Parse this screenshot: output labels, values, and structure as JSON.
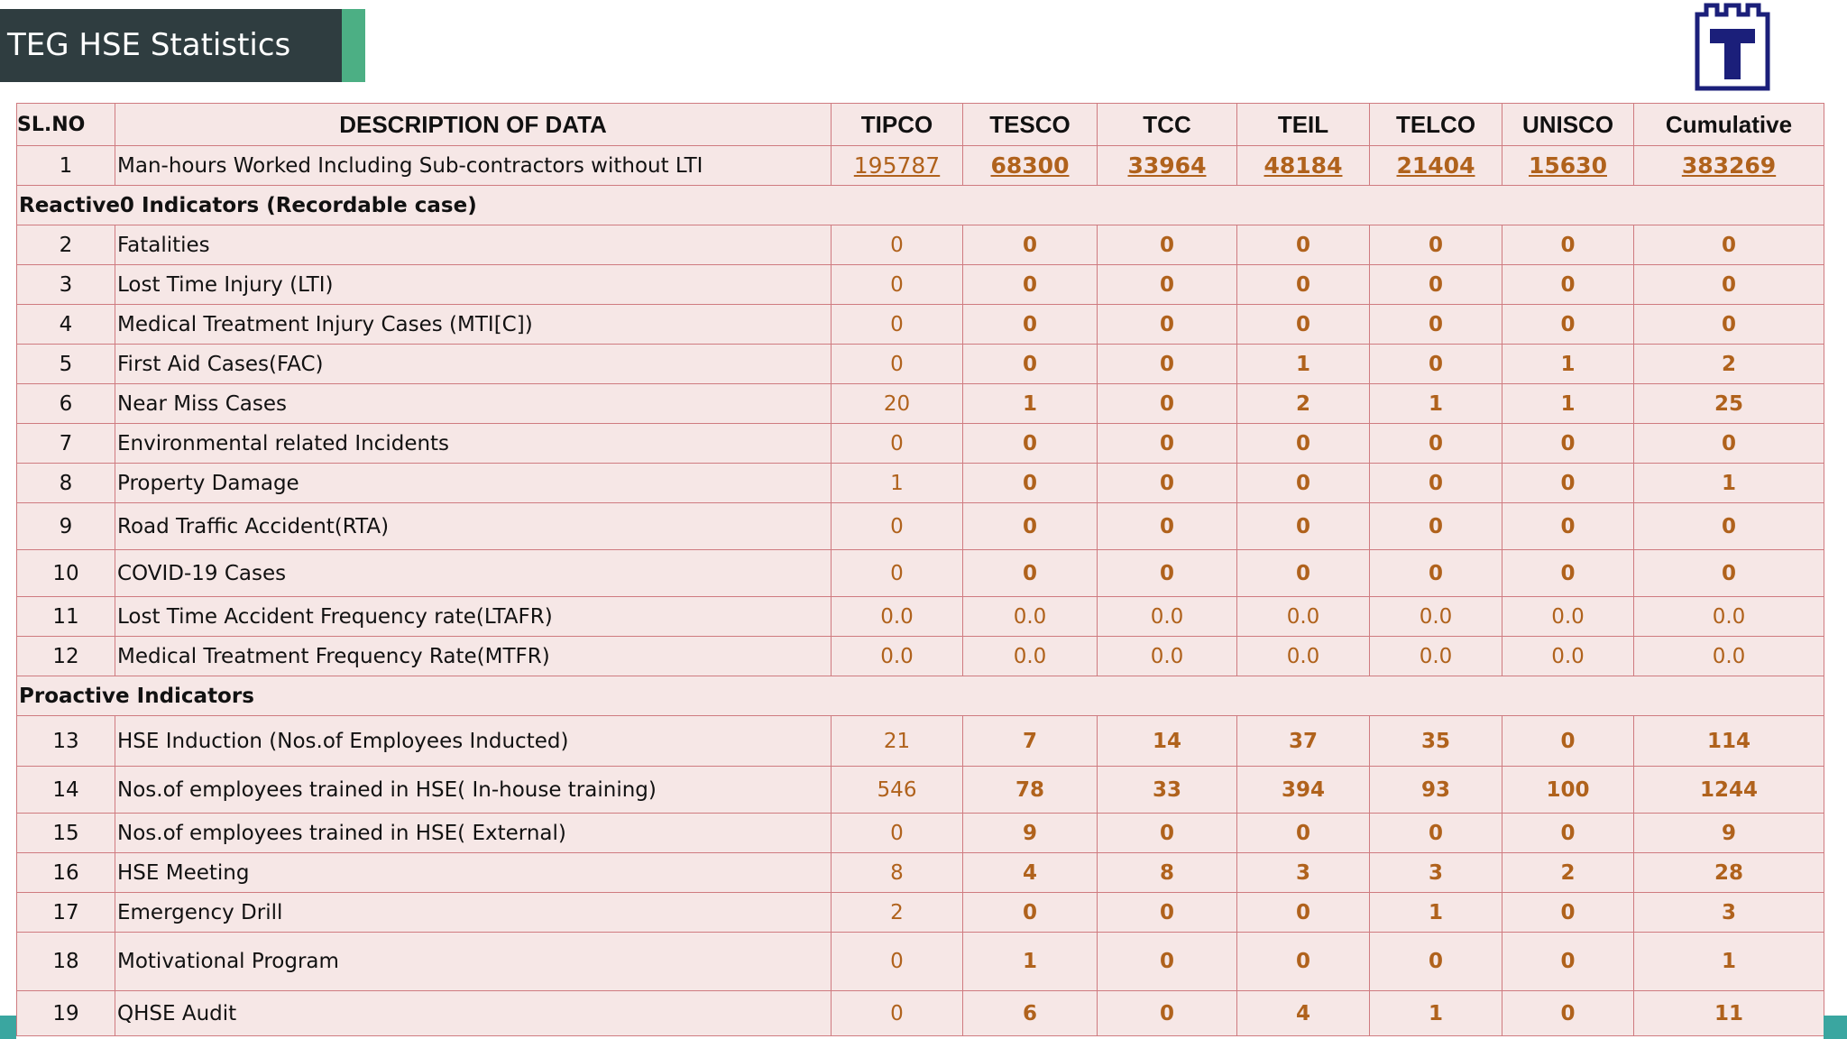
{
  "header": {
    "title": "TEG HSE Statistics"
  },
  "table": {
    "columns": [
      "SL.NO",
      "DESCRIPTION OF DATA",
      "TIPCO",
      "TESCO",
      "TCC",
      "TEIL",
      "TELCO",
      "UNISCO",
      "Cumulative"
    ],
    "rows": [
      {
        "cells": [
          "1",
          "Man-hours Worked Including Sub-contractors without LTI",
          "195787",
          "68300",
          "33964",
          "48184",
          "21404",
          "15630",
          "383269"
        ]
      },
      {
        "section": "Reactive0 Indicators (Recordable case)"
      },
      {
        "cells": [
          "2",
          "Fatalities",
          "0",
          "0",
          "0",
          "0",
          "0",
          "0",
          "0"
        ]
      },
      {
        "cells": [
          "3",
          "Lost Time Injury (LTI)",
          "0",
          "0",
          "0",
          "0",
          "0",
          "0",
          "0"
        ]
      },
      {
        "cells": [
          "4",
          "Medical Treatment Injury Cases (MTI[C])",
          "0",
          "0",
          "0",
          "0",
          "0",
          "0",
          "0"
        ]
      },
      {
        "cells": [
          "5",
          "First Aid Cases(FAC)",
          "0",
          "0",
          "0",
          "1",
          "0",
          "1",
          "2"
        ]
      },
      {
        "cells": [
          "6",
          "Near Miss Cases",
          "20",
          "1",
          "0",
          "2",
          "1",
          "1",
          "25"
        ]
      },
      {
        "cells": [
          "7",
          "Environmental related Incidents",
          "0",
          "0",
          "0",
          "0",
          "0",
          "0",
          "0"
        ]
      },
      {
        "cells": [
          "8",
          "Property Damage",
          "1",
          "0",
          "0",
          "0",
          "0",
          "0",
          "1"
        ]
      },
      {
        "cells": [
          "9",
          "Road Traffic Accident(RTA)",
          "0",
          "0",
          "0",
          "0",
          "0",
          "0",
          "0"
        ]
      },
      {
        "cells": [
          "10",
          "COVID-19 Cases",
          "0",
          "0",
          "0",
          "0",
          "0",
          "0",
          "0"
        ]
      },
      {
        "cells": [
          "11",
          "Lost Time Accident Frequency rate(LTAFR)",
          "0.0",
          "0.0",
          "0.0",
          "0.0",
          "0.0",
          "0.0",
          "0.0"
        ]
      },
      {
        "cells": [
          "12",
          "Medical Treatment Frequency Rate(MTFR)",
          "0.0",
          "0.0",
          "0.0",
          "0.0",
          "0.0",
          "0.0",
          "0.0"
        ]
      },
      {
        "section": "Proactive Indicators"
      },
      {
        "cells": [
          "13",
          "HSE Induction (Nos.of Employees Inducted)",
          "21",
          "7",
          "14",
          "37",
          "35",
          "0",
          "114"
        ]
      },
      {
        "cells": [
          "14",
          "Nos.of employees trained in HSE( In-house training)",
          "546",
          "78",
          "33",
          "394",
          "93",
          "100",
          "1244"
        ]
      },
      {
        "cells": [
          "15",
          "Nos.of employees trained in HSE( External)",
          "0",
          "9",
          "0",
          "0",
          "0",
          "0",
          "9"
        ]
      },
      {
        "cells": [
          "16",
          "HSE Meeting",
          "8",
          "4",
          "8",
          "3",
          "3",
          "2",
          "28"
        ]
      },
      {
        "cells": [
          "17",
          "Emergency Drill",
          "2",
          "0",
          "0",
          "0",
          "1",
          "0",
          "3"
        ]
      },
      {
        "cells": [
          "18",
          "Motivational Program",
          "0",
          "1",
          "0",
          "0",
          "0",
          "0",
          "1"
        ]
      },
      {
        "cells": [
          "19",
          "QHSE Audit",
          "0",
          "6",
          "0",
          "4",
          "1",
          "0",
          "11"
        ]
      }
    ]
  }
}
